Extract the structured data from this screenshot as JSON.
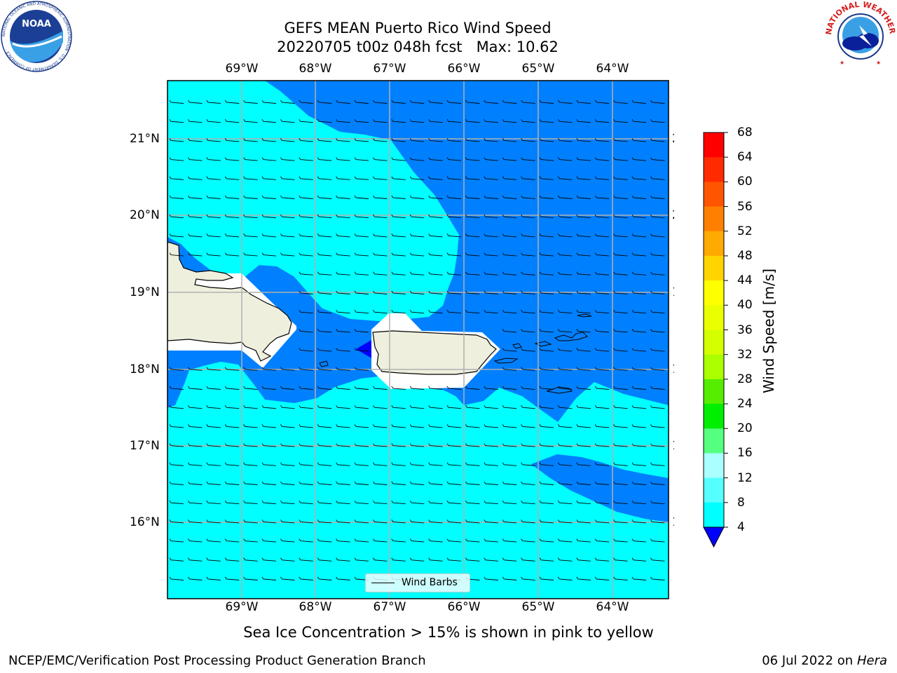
{
  "title": {
    "line1": "GEFS MEAN Puerto Rico Wind Speed",
    "line2": "20220705 t00z 048h fcst   Max: 10.62"
  },
  "map": {
    "lon_ticks": [
      "69°W",
      "68°W",
      "67°W",
      "66°W",
      "65°W",
      "64°W"
    ],
    "lat_ticks": [
      "21°N",
      "20°N",
      "19°N",
      "18°N",
      "17°N",
      "16°N"
    ],
    "colors": {
      "light_cyan": "#00ffff",
      "medium_blue": "#0080ff",
      "dark_blue": "#0000ff",
      "land": "#efefde",
      "grid": "#b0b0b0"
    }
  },
  "colorbar": {
    "label": "Wind Speed [m/s]",
    "ticks": [
      "68",
      "64",
      "60",
      "56",
      "52",
      "48",
      "44",
      "40",
      "36",
      "32",
      "28",
      "24",
      "20",
      "16",
      "12",
      "8",
      "4"
    ],
    "colors": [
      "#ff0000",
      "#ff2a00",
      "#ff5500",
      "#ff8000",
      "#ffaa00",
      "#ffd400",
      "#ffff00",
      "#eaff00",
      "#d4ff00",
      "#aaff00",
      "#55ee00",
      "#00ee00",
      "#55ff80",
      "#aaffff",
      "#55ffff",
      "#00ffff",
      "#0080ff"
    ],
    "under_color": "#0000ff"
  },
  "legend": {
    "label": "Wind Barbs"
  },
  "subtitle": "Sea Ice Concentration > 15% is shown in pink to yellow",
  "footer": {
    "left": "NCEP/EMC/Verification Post Processing Product Generation Branch",
    "date": "06 Jul 2022 on ",
    "host": "Hera"
  },
  "logos": {
    "noaa_text": "NOAA",
    "noaa_ring": "NATIONAL OCEANIC AND ATMOSPHERIC ADMINISTRATION · U.S. DEPARTMENT OF COMMERCE ·",
    "nws_ring": "NATIONAL WEATHER SERVICE"
  }
}
